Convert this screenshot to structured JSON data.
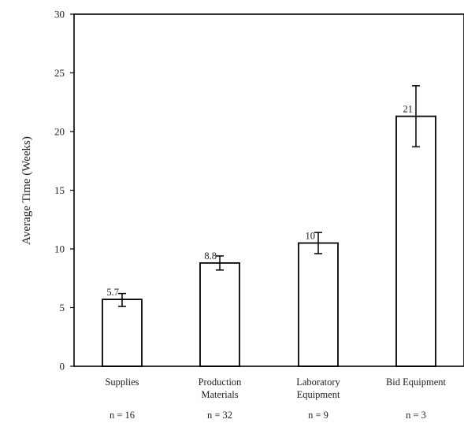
{
  "chart_data": {
    "type": "bar",
    "title": "",
    "xlabel": "",
    "ylabel": "Average Time (Weeks)",
    "ylim": [
      0,
      30
    ],
    "yticks": [
      0,
      5,
      10,
      15,
      20,
      25,
      30
    ],
    "grid": false,
    "legend": "none",
    "categories": [
      [
        "Supplies"
      ],
      [
        "Production",
        "Materials"
      ],
      [
        "Laboratory",
        "Equipment"
      ],
      [
        "Bid Equipment"
      ]
    ],
    "values": [
      5.7,
      8.8,
      10.5,
      21.3
    ],
    "data_labels": [
      "5.7",
      "8.8",
      "10",
      "21"
    ],
    "error_low": [
      5.1,
      8.2,
      9.6,
      18.7
    ],
    "error_high": [
      6.2,
      9.4,
      11.4,
      23.9
    ],
    "sample_sizes": [
      "n = 16",
      "n = 32",
      "n = 9",
      "n = 3"
    ],
    "bar_fill": "#ffffff",
    "bar_stroke": "#000000"
  }
}
